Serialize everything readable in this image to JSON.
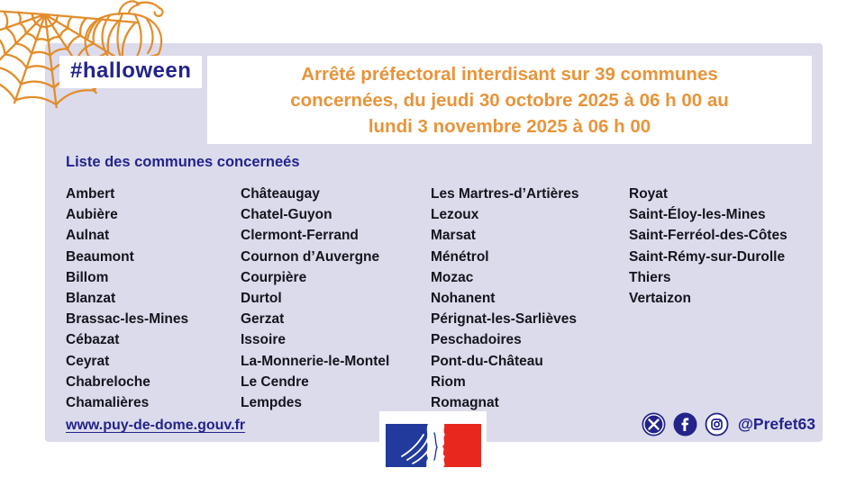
{
  "colors": {
    "panel_lavender": "#dcdbec",
    "navy": "#23238c",
    "orange_title": "#e8943a",
    "orange_deco": "#e28d2b",
    "commune_text": "#15151d",
    "flag_blue": "#213a9b",
    "flag_red": "#e8271e"
  },
  "hashtag": "#halloween",
  "header": {
    "title": "Arrêté préfectoral interdisant sur 39 communes concernées, du jeudi 30 octobre 2025 à 06 h 00 au lundi 3 novembre 2025 à 06 h 00",
    "title_lines": [
      "Arrêté préfectoral interdisant sur 39 communes",
      "concernées, du jeudi 30 octobre 2025 à 06 h 00 au",
      "lundi 3 novembre 2025 à 06 h 00"
    ]
  },
  "list": {
    "heading": "Liste des communes concerneés",
    "columns": [
      [
        "Ambert",
        "Aubière",
        "Aulnat",
        "Beaumont",
        "Billom",
        "Blanzat",
        "Brassac-les-Mines",
        "Cébazat",
        "Ceyrat",
        "Chabreloche",
        "Chamalières"
      ],
      [
        "Châteaugay",
        "Chatel-Guyon",
        "Clermont-Ferrand",
        "Cournon d’Auvergne",
        "Courpière",
        "Durtol",
        "Gerzat",
        "Issoire",
        "La-Monnerie-le-Montel",
        "Le Cendre",
        "Lempdes"
      ],
      [
        "Les Martres-d’Artières",
        "Lezoux",
        "Marsat",
        "Ménétrol",
        "Mozac",
        "Nohanent",
        "Pérignat-les-Sarlièves",
        "Peschadoires",
        "Pont-du-Château",
        "Riom",
        "Romagnat"
      ],
      [
        "Royat",
        "Saint-Éloy-les-Mines",
        "Saint-Ferréol-des-Côtes",
        "Saint-Rémy-sur-Durolle",
        "Thiers",
        "Vertaizon"
      ]
    ]
  },
  "footer": {
    "website": "www.puy-de-dome.gouv.fr",
    "social_handle": "@Prefet63",
    "social_icons": [
      "x-icon",
      "facebook-icon",
      "instagram-icon"
    ]
  }
}
